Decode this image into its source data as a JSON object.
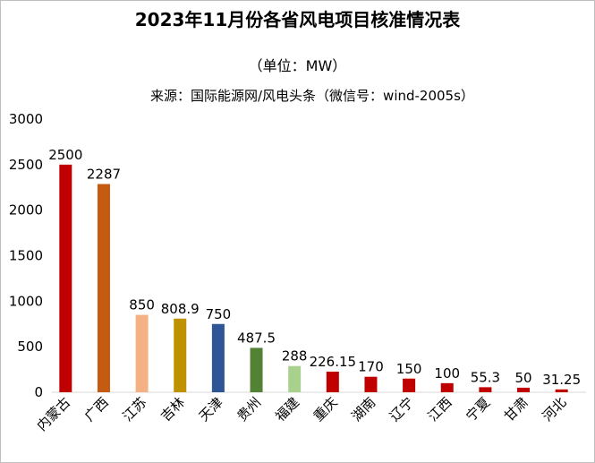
{
  "chart_data": {
    "type": "bar",
    "title": "2023年11月份各省风电项目核准情况表",
    "subtitle": "（单位：MW）",
    "source": "来源：国际能源网/风电头条（微信号：wind-2005s）",
    "categories": [
      "内蒙古",
      "广西",
      "江苏",
      "吉林",
      "天津",
      "贵州",
      "福建",
      "重庆",
      "湖南",
      "辽宁",
      "江西",
      "宁夏",
      "甘肃",
      "河北"
    ],
    "values": [
      2500,
      2287,
      850,
      808.9,
      750,
      487.5,
      288,
      226.15,
      170,
      150,
      100,
      55.3,
      50,
      31.25
    ],
    "data_labels": [
      "2500",
      "2287",
      "850",
      "808.9",
      "750",
      "487.5",
      "288",
      "226.15",
      "170",
      "150",
      "100",
      "55.3",
      "50",
      "31.25"
    ],
    "colors": [
      "#c00000",
      "#c55a11",
      "#f4b183",
      "#bf9000",
      "#2f5597",
      "#548235",
      "#a9d18e",
      "#c00000",
      "#c00000",
      "#c00000",
      "#c00000",
      "#c00000",
      "#c00000",
      "#c00000"
    ],
    "ylim": [
      0,
      3000
    ],
    "yticks": [
      0,
      500,
      1000,
      1500,
      2000,
      2500,
      3000
    ],
    "xlabel": "",
    "ylabel": "",
    "grid": false,
    "legend": "none"
  }
}
